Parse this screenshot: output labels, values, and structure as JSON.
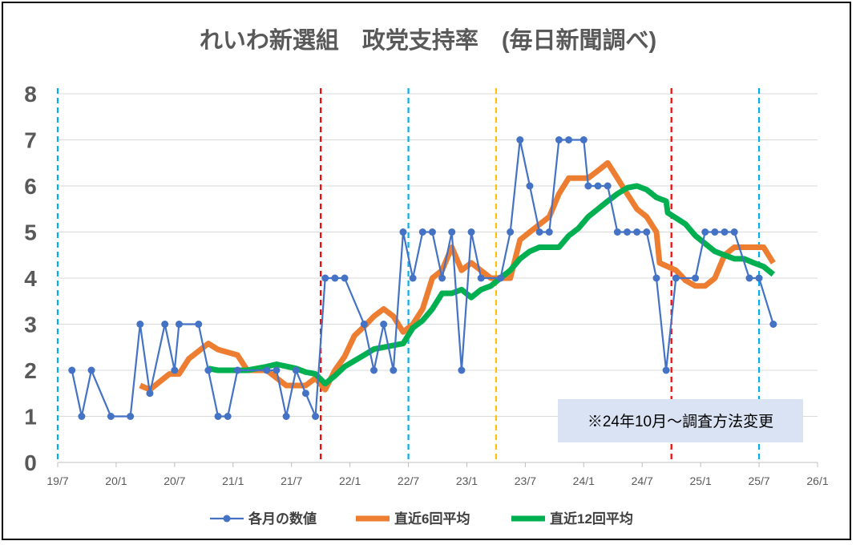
{
  "chart_data": {
    "type": "line",
    "title": "れいわ新選組　政党支持率　(毎日新聞調べ)",
    "ylim": [
      0,
      8
    ],
    "yticks": [
      "0",
      "1",
      "2",
      "3",
      "4",
      "5",
      "6",
      "7",
      "8"
    ],
    "grid": true,
    "legend_position": "bottom",
    "x_axis": {
      "type": "date",
      "min": "2019-07",
      "max": "2026-01",
      "ticks": [
        {
          "date": "2019-07",
          "label": "19/7"
        },
        {
          "date": "2020-01",
          "label": "20/1"
        },
        {
          "date": "2020-07",
          "label": "20/7"
        },
        {
          "date": "2021-01",
          "label": "21/1"
        },
        {
          "date": "2021-07",
          "label": "21/7"
        },
        {
          "date": "2022-01",
          "label": "22/1"
        },
        {
          "date": "2022-07",
          "label": "22/7"
        },
        {
          "date": "2023-01",
          "label": "23/1"
        },
        {
          "date": "2023-07",
          "label": "23/7"
        },
        {
          "date": "2024-01",
          "label": "24/1"
        },
        {
          "date": "2024-07",
          "label": "24/7"
        },
        {
          "date": "2025-01",
          "label": "25/1"
        },
        {
          "date": "2025-07",
          "label": "25/7"
        },
        {
          "date": "2026-01",
          "label": "26/1"
        }
      ]
    },
    "vertical_markers": [
      {
        "date": "2019-07",
        "color": "#00B0F0",
        "style": "dashed"
      },
      {
        "date": "2021-10",
        "color": "#FF0000",
        "style": "dashed"
      },
      {
        "date": "2022-07",
        "color": "#00B0F0",
        "style": "dashed"
      },
      {
        "date": "2023-04",
        "color": "#FFC000",
        "style": "dashed"
      },
      {
        "date": "2024-10",
        "color": "#FF0000",
        "style": "dashed"
      },
      {
        "date": "2025-07",
        "color": "#00B0F0",
        "style": "dashed"
      }
    ],
    "series": [
      {
        "name": "各月の数値",
        "color": "#4472C4",
        "marker": "circle",
        "points": [
          [
            "2019-08-15",
            2
          ],
          [
            "2019-09-15",
            1
          ],
          [
            "2019-10-15",
            2
          ],
          [
            "2019-12-15",
            1
          ],
          [
            "2020-02-15",
            1
          ],
          [
            "2020-03-15",
            3
          ],
          [
            "2020-04-15",
            1.5
          ],
          [
            "2020-06-01",
            3
          ],
          [
            "2020-07-01",
            2
          ],
          [
            "2020-07-15",
            3
          ],
          [
            "2020-09-15",
            3
          ],
          [
            "2020-10-15",
            2
          ],
          [
            "2020-11-15",
            1
          ],
          [
            "2020-12-15",
            1
          ],
          [
            "2021-01-15",
            2
          ],
          [
            "2021-04-15",
            2
          ],
          [
            "2021-05-15",
            2
          ],
          [
            "2021-06-15",
            1
          ],
          [
            "2021-07-15",
            2
          ],
          [
            "2021-08-15",
            1.5
          ],
          [
            "2021-09-15",
            1
          ],
          [
            "2021-10-15",
            4
          ],
          [
            "2021-11-15",
            4
          ],
          [
            "2021-12-15",
            4
          ],
          [
            "2022-02-15",
            3
          ],
          [
            "2022-03-15",
            2
          ],
          [
            "2022-04-15",
            3
          ],
          [
            "2022-05-15",
            2
          ],
          [
            "2022-06-15",
            5
          ],
          [
            "2022-07-15",
            4
          ],
          [
            "2022-08-15",
            5
          ],
          [
            "2022-09-15",
            5
          ],
          [
            "2022-10-15",
            4
          ],
          [
            "2022-11-15",
            5
          ],
          [
            "2022-12-15",
            2
          ],
          [
            "2023-01-15",
            5
          ],
          [
            "2023-02-15",
            4
          ],
          [
            "2023-04-15",
            4
          ],
          [
            "2023-05-15",
            5
          ],
          [
            "2023-06-15",
            7
          ],
          [
            "2023-07-15",
            6
          ],
          [
            "2023-08-15",
            5
          ],
          [
            "2023-09-15",
            5
          ],
          [
            "2023-10-15",
            7
          ],
          [
            "2023-11-15",
            7
          ],
          [
            "2024-01-01",
            7
          ],
          [
            "2024-01-15",
            6
          ],
          [
            "2024-02-15",
            6
          ],
          [
            "2024-03-15",
            6
          ],
          [
            "2024-04-15",
            5
          ],
          [
            "2024-05-15",
            5
          ],
          [
            "2024-06-15",
            5
          ],
          [
            "2024-07-15",
            5
          ],
          [
            "2024-08-15",
            4
          ],
          [
            "2024-09-15",
            2
          ],
          [
            "2024-10-15",
            4
          ],
          [
            "2024-12-15",
            4
          ],
          [
            "2025-01-15",
            5
          ],
          [
            "2025-02-15",
            5
          ],
          [
            "2025-03-15",
            5
          ],
          [
            "2025-04-15",
            5
          ],
          [
            "2025-06-01",
            4
          ],
          [
            "2025-07-01",
            4
          ],
          [
            "2025-08-15",
            3
          ]
        ]
      },
      {
        "name": "直近6回平均",
        "color": "#ED7D31",
        "marker": "none",
        "points": [
          [
            "2020-03-15",
            1.67
          ],
          [
            "2020-04-15",
            1.58
          ],
          [
            "2020-06-15",
            1.92
          ],
          [
            "2020-07-15",
            1.92
          ],
          [
            "2020-08-15",
            2.25
          ],
          [
            "2020-10-15",
            2.58
          ],
          [
            "2020-11-15",
            2.45
          ],
          [
            "2021-01-15",
            2.33
          ],
          [
            "2021-02-15",
            2.0
          ],
          [
            "2021-04-15",
            2.0
          ],
          [
            "2021-06-15",
            1.67
          ],
          [
            "2021-07-15",
            1.67
          ],
          [
            "2021-08-15",
            1.67
          ],
          [
            "2021-09-15",
            1.83
          ],
          [
            "2021-10-15",
            1.58
          ],
          [
            "2021-11-15",
            2.0
          ],
          [
            "2021-12-15",
            2.3
          ],
          [
            "2022-01-15",
            2.75
          ],
          [
            "2022-02-15",
            2.95
          ],
          [
            "2022-03-15",
            3.17
          ],
          [
            "2022-04-15",
            3.33
          ],
          [
            "2022-05-15",
            3.17
          ],
          [
            "2022-06-15",
            2.83
          ],
          [
            "2022-07-15",
            3.0
          ],
          [
            "2022-08-15",
            3.33
          ],
          [
            "2022-09-15",
            4.0
          ],
          [
            "2022-10-15",
            4.17
          ],
          [
            "2022-11-15",
            4.67
          ],
          [
            "2022-12-15",
            4.17
          ],
          [
            "2023-01-15",
            4.33
          ],
          [
            "2023-03-15",
            4.0
          ],
          [
            "2023-05-15",
            4.0
          ],
          [
            "2023-06-15",
            4.83
          ],
          [
            "2023-07-15",
            5.0
          ],
          [
            "2023-09-15",
            5.33
          ],
          [
            "2023-10-15",
            5.83
          ],
          [
            "2023-11-15",
            6.17
          ],
          [
            "2024-01-01",
            6.17
          ],
          [
            "2024-01-15",
            6.17
          ],
          [
            "2024-02-15",
            6.33
          ],
          [
            "2024-03-15",
            6.5
          ],
          [
            "2024-04-15",
            6.17
          ],
          [
            "2024-05-15",
            5.83
          ],
          [
            "2024-06-15",
            5.5
          ],
          [
            "2024-07-15",
            5.33
          ],
          [
            "2024-08-15",
            5.0
          ],
          [
            "2024-08-25",
            4.33
          ],
          [
            "2024-10-15",
            4.17
          ],
          [
            "2024-11-15",
            3.95
          ],
          [
            "2024-12-15",
            3.83
          ],
          [
            "2025-01-15",
            3.83
          ],
          [
            "2025-02-15",
            4.0
          ],
          [
            "2025-03-15",
            4.5
          ],
          [
            "2025-04-15",
            4.67
          ],
          [
            "2025-06-01",
            4.67
          ],
          [
            "2025-07-15",
            4.67
          ],
          [
            "2025-08-15",
            4.33
          ]
        ]
      },
      {
        "name": "直近12回平均",
        "color": "#00B050",
        "marker": "none",
        "points": [
          [
            "2020-10-15",
            2.04
          ],
          [
            "2020-11-15",
            2.0
          ],
          [
            "2021-01-15",
            2.0
          ],
          [
            "2021-02-15",
            2.0
          ],
          [
            "2021-04-15",
            2.08
          ],
          [
            "2021-05-15",
            2.13
          ],
          [
            "2021-07-15",
            2.04
          ],
          [
            "2021-08-15",
            1.96
          ],
          [
            "2021-09-15",
            1.92
          ],
          [
            "2021-10-15",
            1.71
          ],
          [
            "2021-11-15",
            1.88
          ],
          [
            "2021-12-15",
            2.08
          ],
          [
            "2022-02-15",
            2.33
          ],
          [
            "2022-03-15",
            2.46
          ],
          [
            "2022-04-15",
            2.5
          ],
          [
            "2022-05-15",
            2.54
          ],
          [
            "2022-06-15",
            2.58
          ],
          [
            "2022-07-15",
            2.92
          ],
          [
            "2022-08-15",
            3.08
          ],
          [
            "2022-09-15",
            3.33
          ],
          [
            "2022-10-15",
            3.67
          ],
          [
            "2022-11-15",
            3.67
          ],
          [
            "2022-12-15",
            3.75
          ],
          [
            "2023-01-15",
            3.58
          ],
          [
            "2023-02-15",
            3.75
          ],
          [
            "2023-03-15",
            3.83
          ],
          [
            "2023-04-15",
            4.0
          ],
          [
            "2023-05-15",
            4.17
          ],
          [
            "2023-06-15",
            4.42
          ],
          [
            "2023-07-15",
            4.58
          ],
          [
            "2023-08-15",
            4.67
          ],
          [
            "2023-10-15",
            4.67
          ],
          [
            "2023-11-15",
            4.92
          ],
          [
            "2023-12-15",
            5.08
          ],
          [
            "2024-01-15",
            5.33
          ],
          [
            "2024-02-15",
            5.5
          ],
          [
            "2024-03-15",
            5.67
          ],
          [
            "2024-04-15",
            5.83
          ],
          [
            "2024-05-15",
            5.96
          ],
          [
            "2024-06-15",
            6.0
          ],
          [
            "2024-07-15",
            5.92
          ],
          [
            "2024-08-15",
            5.75
          ],
          [
            "2024-09-15",
            5.67
          ],
          [
            "2024-09-20",
            5.42
          ],
          [
            "2024-11-15",
            5.17
          ],
          [
            "2024-12-15",
            4.92
          ],
          [
            "2025-01-15",
            4.75
          ],
          [
            "2025-02-15",
            4.58
          ],
          [
            "2025-03-15",
            4.5
          ],
          [
            "2025-04-15",
            4.42
          ],
          [
            "2025-05-15",
            4.42
          ],
          [
            "2025-06-15",
            4.33
          ],
          [
            "2025-07-15",
            4.25
          ],
          [
            "2025-08-15",
            4.08
          ]
        ]
      }
    ],
    "annotations": [
      {
        "text": "※24年10月～調査方法変更",
        "position": "bottom-right"
      }
    ]
  }
}
